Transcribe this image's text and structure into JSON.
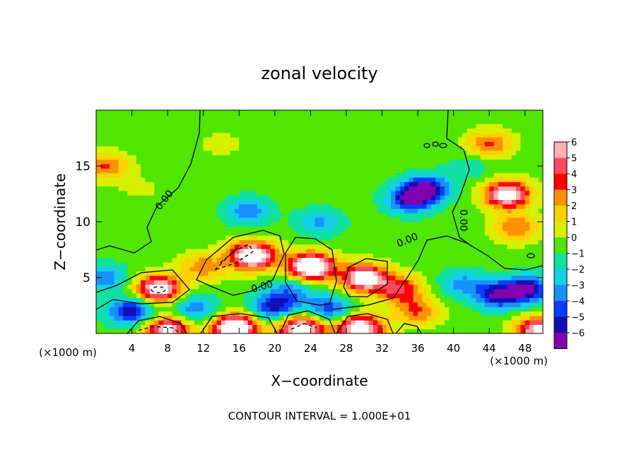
{
  "chart_data": {
    "type": "heatmap",
    "title": "zonal velocity",
    "xlabel": "X−coordinate",
    "ylabel": "Z−coordinate",
    "x_unit_left": "(×1000 m)",
    "x_unit_right": "(×1000 m)",
    "footer": "CONTOUR INTERVAL = 1.000E+01",
    "xlim": [
      0,
      50
    ],
    "ylim": [
      0,
      20
    ],
    "x_ticks": [
      4,
      8,
      12,
      16,
      20,
      24,
      28,
      32,
      36,
      40,
      44,
      48
    ],
    "y_ticks": [
      5,
      10,
      15
    ],
    "contour_labels": [
      "0.00",
      "0.00",
      "0.00",
      "0.00"
    ],
    "colorbar": {
      "ticks": [
        6,
        5,
        4,
        3,
        2,
        1,
        0,
        -1,
        -2,
        -3,
        -4,
        -5,
        -6
      ],
      "tick_labels": [
        "6",
        "5",
        "4",
        "3",
        "2",
        "1",
        "0",
        "−1",
        "−2",
        "−3",
        "−4",
        "−5",
        "−6"
      ],
      "colors": [
        "#ffb0b0",
        "#ff4a5e",
        "#ff0000",
        "#ff9000",
        "#ffd200",
        "#d6f000",
        "#50e600",
        "#10e0a0",
        "#14cfe6",
        "#1890ff",
        "#0a3cff",
        "#1010b4",
        "#8000b0"
      ]
    },
    "features": [
      {
        "x": 14,
        "z": 17,
        "v": 0.9
      },
      {
        "x": 30,
        "z": 18,
        "v": 0.5
      },
      {
        "x": 5,
        "z": 13,
        "v": 0.7
      },
      {
        "x": 1,
        "z": 15,
        "v": 3.6
      },
      {
        "x": 17,
        "z": 11,
        "v": -3.2
      },
      {
        "x": 25,
        "z": 10,
        "v": -2.7
      },
      {
        "x": 35,
        "z": 12,
        "v": -4.8
      },
      {
        "x": 37,
        "z": 13,
        "v": -5.7
      },
      {
        "x": 42,
        "z": 15,
        "v": -1.3
      },
      {
        "x": 46,
        "z": 12.5,
        "v": 7.5
      },
      {
        "x": 47,
        "z": 9.5,
        "v": 3.5
      },
      {
        "x": 44,
        "z": 17,
        "v": 3.6
      },
      {
        "x": 17.5,
        "z": 7,
        "v": 8.5
      },
      {
        "x": 24,
        "z": 6,
        "v": 9
      },
      {
        "x": 30,
        "z": 5,
        "v": 7.6
      },
      {
        "x": 7,
        "z": 4,
        "v": 7.6
      },
      {
        "x": 12,
        "z": 6,
        "v": 3.1
      },
      {
        "x": 34,
        "z": 4,
        "v": 4.5
      },
      {
        "x": 36,
        "z": 2,
        "v": 3.5
      },
      {
        "x": 15.5,
        "z": 0.5,
        "v": 9
      },
      {
        "x": 23,
        "z": 0.5,
        "v": 8
      },
      {
        "x": 29.5,
        "z": 0.5,
        "v": 8
      },
      {
        "x": 8,
        "z": 0.4,
        "v": 7
      },
      {
        "x": 49.5,
        "z": 0.3,
        "v": 7
      },
      {
        "x": 4,
        "z": 2,
        "v": -5.5
      },
      {
        "x": 20,
        "z": 2.4,
        "v": -5
      },
      {
        "x": 26,
        "z": 2.2,
        "v": -4.2
      },
      {
        "x": 11,
        "z": 2.2,
        "v": -3.5
      },
      {
        "x": 45,
        "z": 3.5,
        "v": -5.4
      },
      {
        "x": 48.5,
        "z": 4,
        "v": -5.4
      },
      {
        "x": 41,
        "z": 4.5,
        "v": -2.8
      },
      {
        "x": 1,
        "z": 5,
        "v": -3.2
      },
      {
        "x": 22,
        "z": 4,
        "v": -2.8
      }
    ]
  }
}
